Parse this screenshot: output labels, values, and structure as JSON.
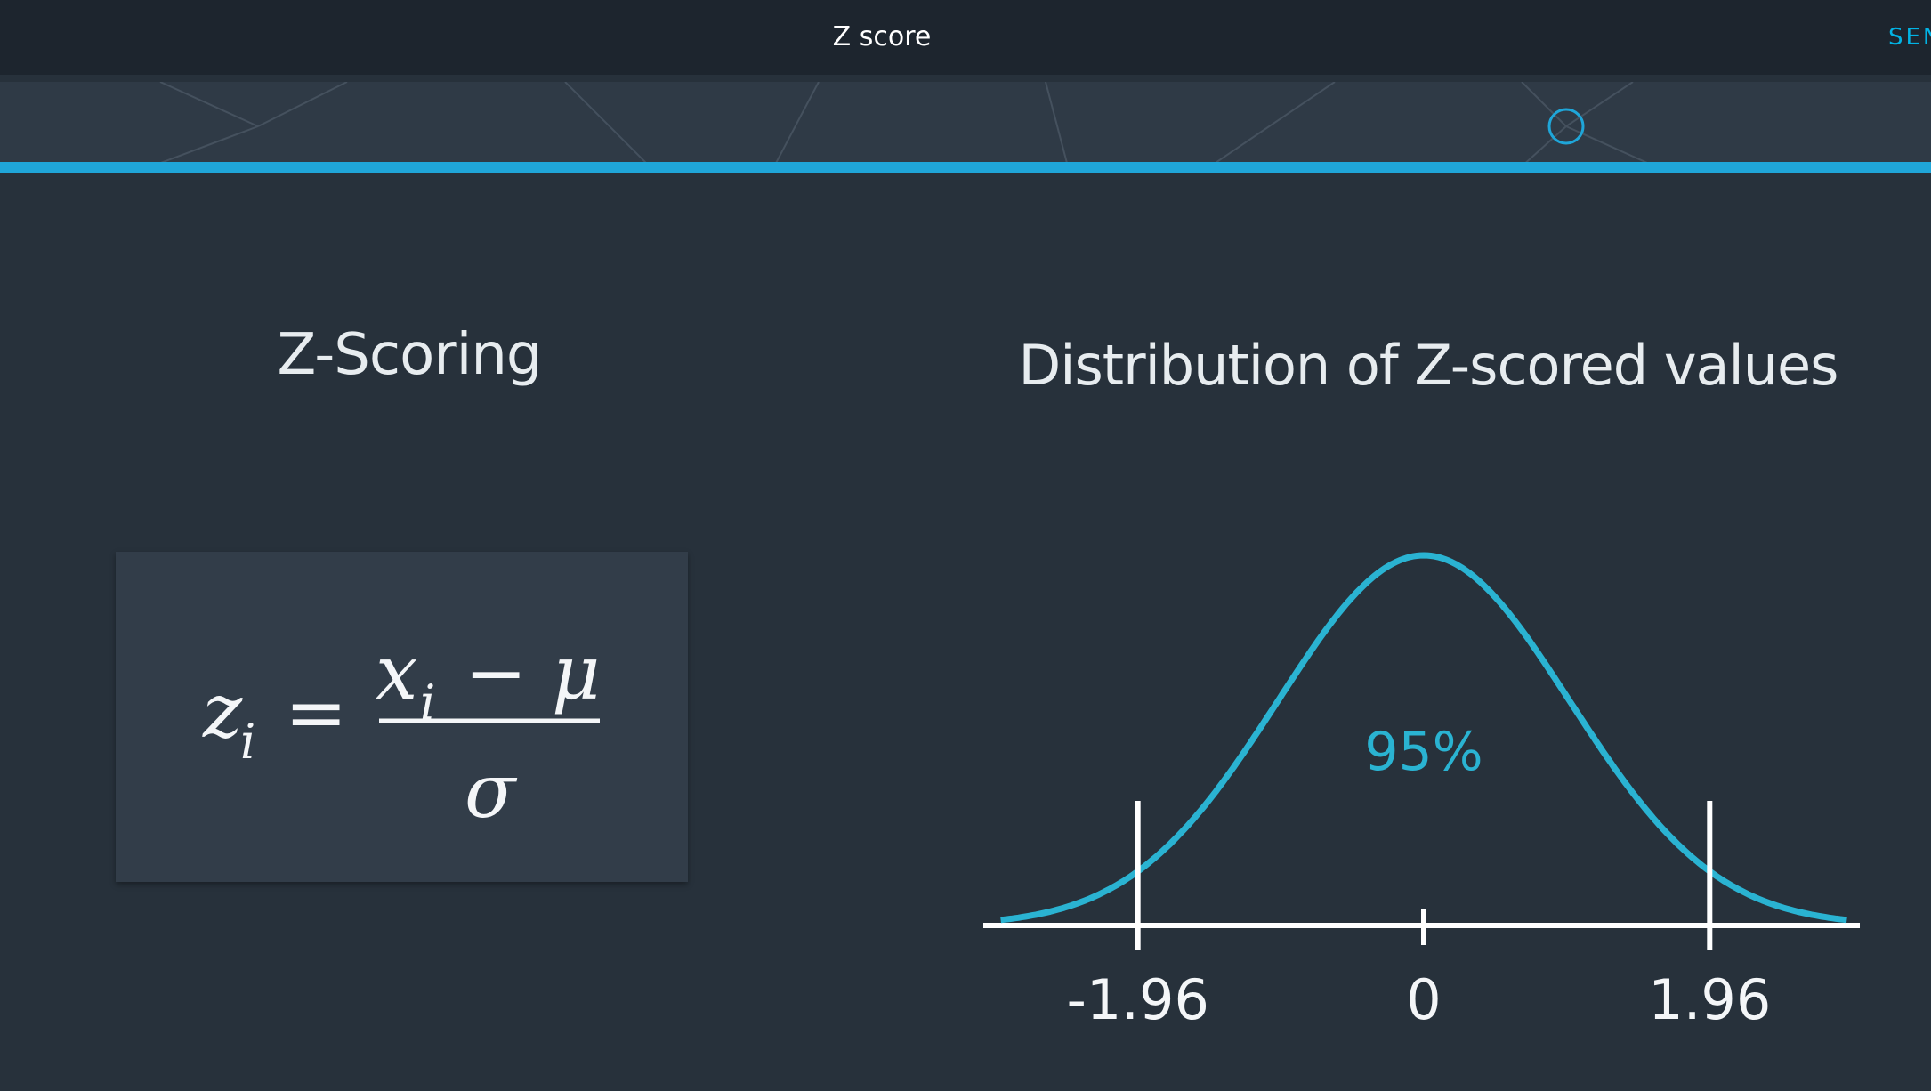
{
  "header": {
    "title": "Z score",
    "action_label": "SEN"
  },
  "content": {
    "left_title": "Z-Scoring",
    "right_title": "Distribution of Z-scored values",
    "formula": {
      "lhs": "z",
      "lhs_subscript": "i",
      "numerator_x": "x",
      "numerator_subscript": "i",
      "numerator_op": "−",
      "numerator_mu": "μ",
      "denominator": "σ",
      "equals": "="
    }
  },
  "chart_data": {
    "type": "line",
    "title": "Distribution of Z-scored values",
    "x_ticks": [
      "-1.96",
      "0",
      "1.96"
    ],
    "tick_values": [
      -1.96,
      0,
      1.96
    ],
    "annotation": "95%",
    "series": [
      {
        "distribution": "standard normal",
        "x": [
          -2.9,
          -2.5,
          -2.0,
          -1.5,
          -1.0,
          -0.5,
          0.0,
          0.5,
          1.0,
          1.5,
          2.0,
          2.5,
          2.9
        ],
        "y": [
          0.006,
          0.018,
          0.054,
          0.13,
          0.242,
          0.352,
          0.399,
          0.352,
          0.242,
          0.13,
          0.054,
          0.018,
          0.006
        ]
      }
    ],
    "xlim": [
      -3.05,
      3.05
    ],
    "grid": false,
    "colors": {
      "curve": "#2ab3d2",
      "axis": "#ffffff",
      "annotation": "#2ab3d2"
    }
  },
  "colors": {
    "background": "#27313b",
    "topbar": "#1d252e",
    "accent": "#1fa6d9",
    "card": "#323d49"
  },
  "icons": {
    "progress_marker": "circle-icon"
  }
}
